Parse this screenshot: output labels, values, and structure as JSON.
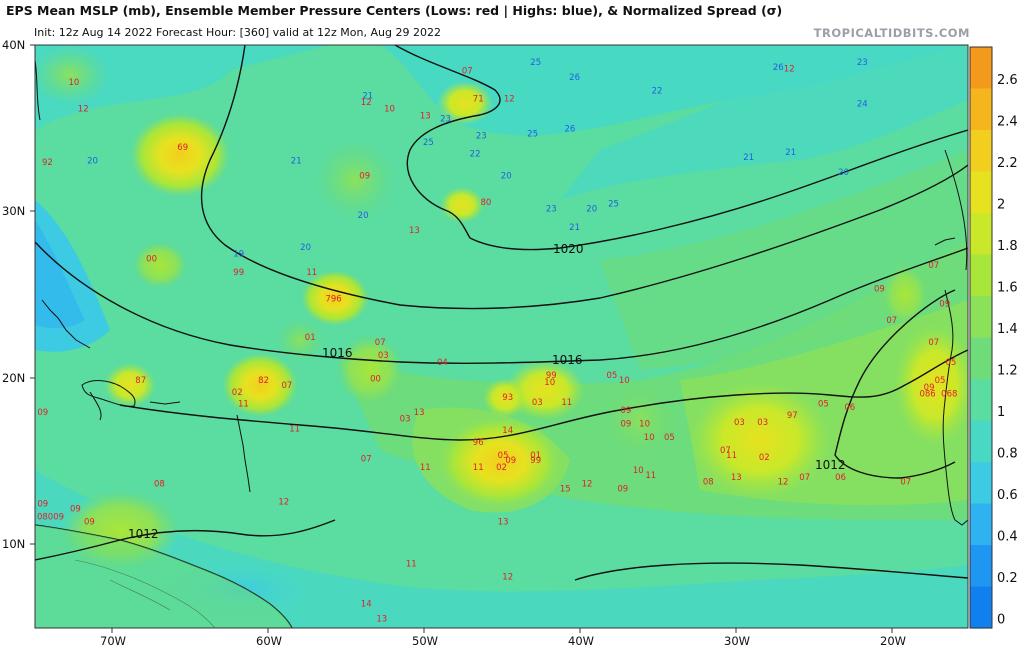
{
  "header": {
    "title": "EPS Mean MSLP (mb), Ensemble Member Pressure Centers (Lows: red | Highs: blue), & Normalized Spread (σ)",
    "subtitle": "Init: 12z Aug 14 2022   Forecast Hour: [360]   valid at 12z Mon, Aug 29 2022",
    "brand": "TROPICALTIDBITS.COM"
  },
  "axes": {
    "lat_labels": [
      "40N",
      "30N",
      "20N",
      "10N"
    ],
    "lon_labels": [
      "70W",
      "60W",
      "50W",
      "40W",
      "30W",
      "20W"
    ]
  },
  "colorbar": {
    "labels": [
      "2.6",
      "2.4",
      "2.2",
      "2",
      "1.8",
      "1.6",
      "1.4",
      "1.2",
      "1",
      "0.8",
      "0.6",
      "0.4",
      "0.2",
      "0"
    ],
    "colors": [
      "#f39a1c",
      "#f5b51c",
      "#f2cf1e",
      "#e6e21f",
      "#c9e82a",
      "#a8e63a",
      "#8ce15b",
      "#6edc78",
      "#5bdca0",
      "#48d8c4",
      "#3dcbe3",
      "#2fb3f0",
      "#1f97f2",
      "#1080ef"
    ]
  },
  "isobars": {
    "labels": [
      "1020",
      "1016",
      "1016",
      "1012",
      "1012"
    ]
  },
  "lows": [
    {
      "v": "10",
      "lon": -72.5,
      "lat": 37.6
    },
    {
      "v": "92",
      "lon": -74.2,
      "lat": 32.8
    },
    {
      "v": "69",
      "lon": -65.5,
      "lat": 33.7
    },
    {
      "v": "00",
      "lon": -67.5,
      "lat": 27.0
    },
    {
      "v": "99",
      "lon": -61.9,
      "lat": 26.2
    },
    {
      "v": "11",
      "lon": -57.2,
      "lat": 26.2
    },
    {
      "v": "796",
      "lon": -55.8,
      "lat": 24.6
    },
    {
      "v": "01",
      "lon": -57.3,
      "lat": 22.3
    },
    {
      "v": "87",
      "lon": -68.2,
      "lat": 19.7
    },
    {
      "v": "82",
      "lon": -60.3,
      "lat": 19.7
    },
    {
      "v": "02",
      "lon": -62.0,
      "lat": 19.0
    },
    {
      "v": "07",
      "lon": -58.8,
      "lat": 19.4
    },
    {
      "v": "11",
      "lon": -61.6,
      "lat": 18.3
    },
    {
      "v": "11",
      "lon": -58.3,
      "lat": 16.8
    },
    {
      "v": "09",
      "lon": -74.5,
      "lat": 17.8
    },
    {
      "v": "12",
      "lon": -71.9,
      "lat": 36.0
    },
    {
      "v": "12",
      "lon": -53.7,
      "lat": 36.4
    },
    {
      "v": "10",
      "lon": -52.2,
      "lat": 36.0
    },
    {
      "v": "13",
      "lon": -49.9,
      "lat": 35.6
    },
    {
      "v": "09",
      "lon": -53.8,
      "lat": 32.0
    },
    {
      "v": "13",
      "lon": -50.6,
      "lat": 28.7
    },
    {
      "v": "07",
      "lon": -52.8,
      "lat": 22.0
    },
    {
      "v": "03",
      "lon": -52.6,
      "lat": 21.2
    },
    {
      "v": "00",
      "lon": -53.1,
      "lat": 19.8
    },
    {
      "v": "13",
      "lon": -50.3,
      "lat": 17.8
    },
    {
      "v": "03",
      "lon": -51.2,
      "lat": 17.4
    },
    {
      "v": "04",
      "lon": -48.8,
      "lat": 20.8
    },
    {
      "v": "07",
      "lon": -47.2,
      "lat": 38.3
    },
    {
      "v": "71",
      "lon": -46.5,
      "lat": 36.6
    },
    {
      "v": "12",
      "lon": -44.5,
      "lat": 36.6
    },
    {
      "v": "80",
      "lon": -46.0,
      "lat": 30.4
    },
    {
      "v": "07",
      "lon": -53.7,
      "lat": 15.0
    },
    {
      "v": "96",
      "lon": -46.5,
      "lat": 16.0
    },
    {
      "v": "05",
      "lon": -44.9,
      "lat": 15.2
    },
    {
      "v": "01",
      "lon": -42.8,
      "lat": 15.2
    },
    {
      "v": "09",
      "lon": -44.4,
      "lat": 14.9
    },
    {
      "v": "99",
      "lon": -42.8,
      "lat": 14.9
    },
    {
      "v": "02",
      "lon": -45.0,
      "lat": 14.5
    },
    {
      "v": "11",
      "lon": -46.5,
      "lat": 14.5
    },
    {
      "v": "11",
      "lon": -49.9,
      "lat": 14.5
    },
    {
      "v": "14",
      "lon": -44.6,
      "lat": 16.7
    },
    {
      "v": "93",
      "lon": -44.6,
      "lat": 18.7
    },
    {
      "v": "99",
      "lon": -41.8,
      "lat": 20.0
    },
    {
      "v": "10",
      "lon": -41.9,
      "lat": 19.6
    },
    {
      "v": "03",
      "lon": -42.7,
      "lat": 18.4
    },
    {
      "v": "11",
      "lon": -40.8,
      "lat": 18.4
    },
    {
      "v": "05",
      "lon": -37.9,
      "lat": 20.0
    },
    {
      "v": "10",
      "lon": -37.1,
      "lat": 19.7
    },
    {
      "v": "09",
      "lon": -37.0,
      "lat": 17.9
    },
    {
      "v": "09",
      "lon": -37.0,
      "lat": 17.1
    },
    {
      "v": "10",
      "lon": -35.8,
      "lat": 17.1
    },
    {
      "v": "10",
      "lon": -35.5,
      "lat": 16.3
    },
    {
      "v": "05",
      "lon": -34.2,
      "lat": 16.3
    },
    {
      "v": "10",
      "lon": -36.2,
      "lat": 14.3
    },
    {
      "v": "11",
      "lon": -35.4,
      "lat": 14.0
    },
    {
      "v": "09",
      "lon": -37.2,
      "lat": 13.2
    },
    {
      "v": "15",
      "lon": -40.9,
      "lat": 13.2
    },
    {
      "v": "12",
      "lon": -39.5,
      "lat": 13.5
    },
    {
      "v": "13",
      "lon": -44.9,
      "lat": 11.2
    },
    {
      "v": "08",
      "lon": -31.7,
      "lat": 13.6
    },
    {
      "v": "07",
      "lon": -30.6,
      "lat": 15.5
    },
    {
      "v": "11",
      "lon": -30.2,
      "lat": 15.2
    },
    {
      "v": "03",
      "lon": -29.7,
      "lat": 17.2
    },
    {
      "v": "03",
      "lon": -28.2,
      "lat": 17.2
    },
    {
      "v": "02",
      "lon": -28.1,
      "lat": 15.1
    },
    {
      "v": "97",
      "lon": -26.3,
      "lat": 17.6
    },
    {
      "v": "05",
      "lon": -24.3,
      "lat": 18.3
    },
    {
      "v": "13",
      "lon": -29.9,
      "lat": 13.9
    },
    {
      "v": "12",
      "lon": -26.9,
      "lat": 13.6
    },
    {
      "v": "07",
      "lon": -25.5,
      "lat": 13.9
    },
    {
      "v": "06",
      "lon": -23.2,
      "lat": 13.9
    },
    {
      "v": "06",
      "lon": -22.6,
      "lat": 18.1
    },
    {
      "v": "09",
      "lon": -20.7,
      "lat": 25.2
    },
    {
      "v": "07",
      "lon": -19.9,
      "lat": 23.3
    },
    {
      "v": "07",
      "lon": -17.2,
      "lat": 26.6
    },
    {
      "v": "07",
      "lon": -17.2,
      "lat": 22.0
    },
    {
      "v": "05",
      "lon": -16.1,
      "lat": 20.8
    },
    {
      "v": "09",
      "lon": -17.5,
      "lat": 19.3
    },
    {
      "v": "05",
      "lon": -16.8,
      "lat": 19.7
    },
    {
      "v": "086",
      "lon": -17.6,
      "lat": 18.9
    },
    {
      "v": "068",
      "lon": -16.2,
      "lat": 18.9
    },
    {
      "v": "09",
      "lon": -16.5,
      "lat": 24.3
    },
    {
      "v": "07",
      "lon": -19.0,
      "lat": 13.6
    },
    {
      "v": "08",
      "lon": -67.0,
      "lat": 13.5
    },
    {
      "v": "12",
      "lon": -59.0,
      "lat": 12.4
    },
    {
      "v": "09",
      "lon": -74.5,
      "lat": 12.3
    },
    {
      "v": "08009",
      "lon": -74.0,
      "lat": 11.5
    },
    {
      "v": "09",
      "lon": -72.4,
      "lat": 12.0
    },
    {
      "v": "09",
      "lon": -71.5,
      "lat": 11.2
    },
    {
      "v": "11",
      "lon": -50.8,
      "lat": 8.7
    },
    {
      "v": "12",
      "lon": -44.6,
      "lat": 7.9
    },
    {
      "v": "14",
      "lon": -53.7,
      "lat": 6.3
    },
    {
      "v": "13",
      "lon": -52.7,
      "lat": 5.4
    },
    {
      "v": "12",
      "lon": -26.5,
      "lat": 38.4
    }
  ],
  "highs": [
    {
      "v": "20",
      "lon": -71.3,
      "lat": 32.9
    },
    {
      "v": "21",
      "lon": -58.2,
      "lat": 32.9
    },
    {
      "v": "21",
      "lon": -53.6,
      "lat": 36.8
    },
    {
      "v": "23",
      "lon": -48.6,
      "lat": 35.4
    },
    {
      "v": "25",
      "lon": -49.7,
      "lat": 34.0
    },
    {
      "v": "23",
      "lon": -46.3,
      "lat": 34.4
    },
    {
      "v": "22",
      "lon": -46.7,
      "lat": 33.3
    },
    {
      "v": "20",
      "lon": -44.7,
      "lat": 32.0
    },
    {
      "v": "20",
      "lon": -53.9,
      "lat": 29.6
    },
    {
      "v": "20",
      "lon": -57.6,
      "lat": 27.7
    },
    {
      "v": "19",
      "lon": -61.9,
      "lat": 27.3
    },
    {
      "v": "25",
      "lon": -42.8,
      "lat": 38.8
    },
    {
      "v": "26",
      "lon": -40.3,
      "lat": 37.9
    },
    {
      "v": "25",
      "lon": -43.0,
      "lat": 34.5
    },
    {
      "v": "26",
      "lon": -40.6,
      "lat": 34.8
    },
    {
      "v": "22",
      "lon": -35.0,
      "lat": 37.1
    },
    {
      "v": "23",
      "lon": -41.8,
      "lat": 30.0
    },
    {
      "v": "20",
      "lon": -39.2,
      "lat": 30.0
    },
    {
      "v": "25",
      "lon": -37.8,
      "lat": 30.3
    },
    {
      "v": "21",
      "lon": -40.3,
      "lat": 28.9
    },
    {
      "v": "26",
      "lon": -27.2,
      "lat": 38.5
    },
    {
      "v": "23",
      "lon": -21.8,
      "lat": 38.8
    },
    {
      "v": "24",
      "lon": -21.8,
      "lat": 36.3
    },
    {
      "v": "21",
      "lon": -29.1,
      "lat": 33.1
    },
    {
      "v": "21",
      "lon": -26.4,
      "lat": 33.4
    },
    {
      "v": "20",
      "lon": -23.0,
      "lat": 32.2
    }
  ]
}
